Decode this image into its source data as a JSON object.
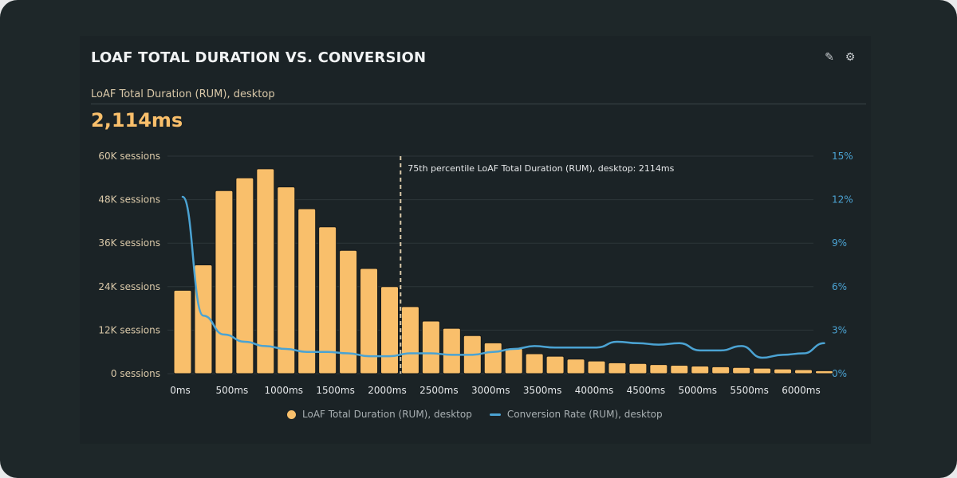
{
  "header": {
    "title": "LOAF TOTAL DURATION VS. CONVERSION",
    "edit_icon": "pencil-icon",
    "settings_icon": "gear-icon",
    "subtitle": "LoAF Total Duration (RUM), desktop",
    "value": "2,114ms"
  },
  "colors": {
    "bar": "#f9bf6b",
    "line": "#4ba3d3",
    "marker": "#d9c8a8"
  },
  "chart_data": {
    "type": "bar",
    "title": "LOAF TOTAL DURATION VS. CONVERSION",
    "xlabel": "",
    "ylabel": "Sessions",
    "y2label": "Conversion Rate",
    "ylim": [
      0,
      60000
    ],
    "y2lim": [
      0,
      15
    ],
    "grid": true,
    "legend_position": "bottom",
    "y_ticks": [
      "0 sessions",
      "12K sessions",
      "24K sessions",
      "36K sessions",
      "48K sessions",
      "60K sessions"
    ],
    "y_tick_values": [
      0,
      12000,
      24000,
      36000,
      48000,
      60000
    ],
    "y2_ticks": [
      "0%",
      "3%",
      "6%",
      "9%",
      "12%",
      "15%"
    ],
    "y2_tick_values": [
      0,
      3,
      6,
      9,
      12,
      15
    ],
    "x_ticks": [
      "0ms",
      "500ms",
      "1000ms",
      "1500ms",
      "2000ms",
      "2500ms",
      "3000ms",
      "3500ms",
      "4000ms",
      "4500ms",
      "5000ms",
      "5500ms",
      "6000ms"
    ],
    "x_tick_values": [
      0,
      500,
      1000,
      1500,
      2000,
      2500,
      3000,
      3500,
      4000,
      4500,
      5000,
      5500,
      6000
    ],
    "x": [
      0,
      200,
      400,
      600,
      800,
      1000,
      1200,
      1400,
      1600,
      1800,
      2000,
      2200,
      2400,
      2600,
      2800,
      3000,
      3200,
      3400,
      3600,
      3800,
      4000,
      4200,
      4400,
      4600,
      4800,
      5000,
      5200,
      5400,
      5600,
      5800,
      6000,
      6200
    ],
    "series": [
      {
        "name": "LoAF Total Duration (RUM), desktop",
        "type": "bar",
        "axis": "left",
        "values": [
          23000,
          30000,
          50500,
          54000,
          56500,
          51500,
          45500,
          40500,
          34000,
          29000,
          24000,
          18500,
          14500,
          12500,
          10500,
          8500,
          7000,
          5500,
          4800,
          4000,
          3500,
          3000,
          2800,
          2500,
          2300,
          2100,
          1900,
          1700,
          1500,
          1300,
          1100,
          800
        ]
      },
      {
        "name": "Conversion Rate (RUM), desktop",
        "type": "line",
        "axis": "right",
        "values": [
          12.2,
          4.0,
          2.7,
          2.2,
          1.9,
          1.7,
          1.5,
          1.5,
          1.4,
          1.2,
          1.2,
          1.4,
          1.4,
          1.3,
          1.3,
          1.5,
          1.7,
          1.9,
          1.8,
          1.8,
          1.8,
          2.2,
          2.1,
          2.0,
          2.1,
          1.6,
          1.6,
          1.9,
          1.1,
          1.3,
          1.4,
          2.1
        ]
      }
    ],
    "annotation": {
      "x": 2114,
      "label": "75th percentile LoAF Total Duration (RUM), desktop: 2114ms"
    }
  },
  "legend": {
    "bar_label": "LoAF Total Duration (RUM), desktop",
    "line_label": "Conversion Rate (RUM), desktop"
  }
}
